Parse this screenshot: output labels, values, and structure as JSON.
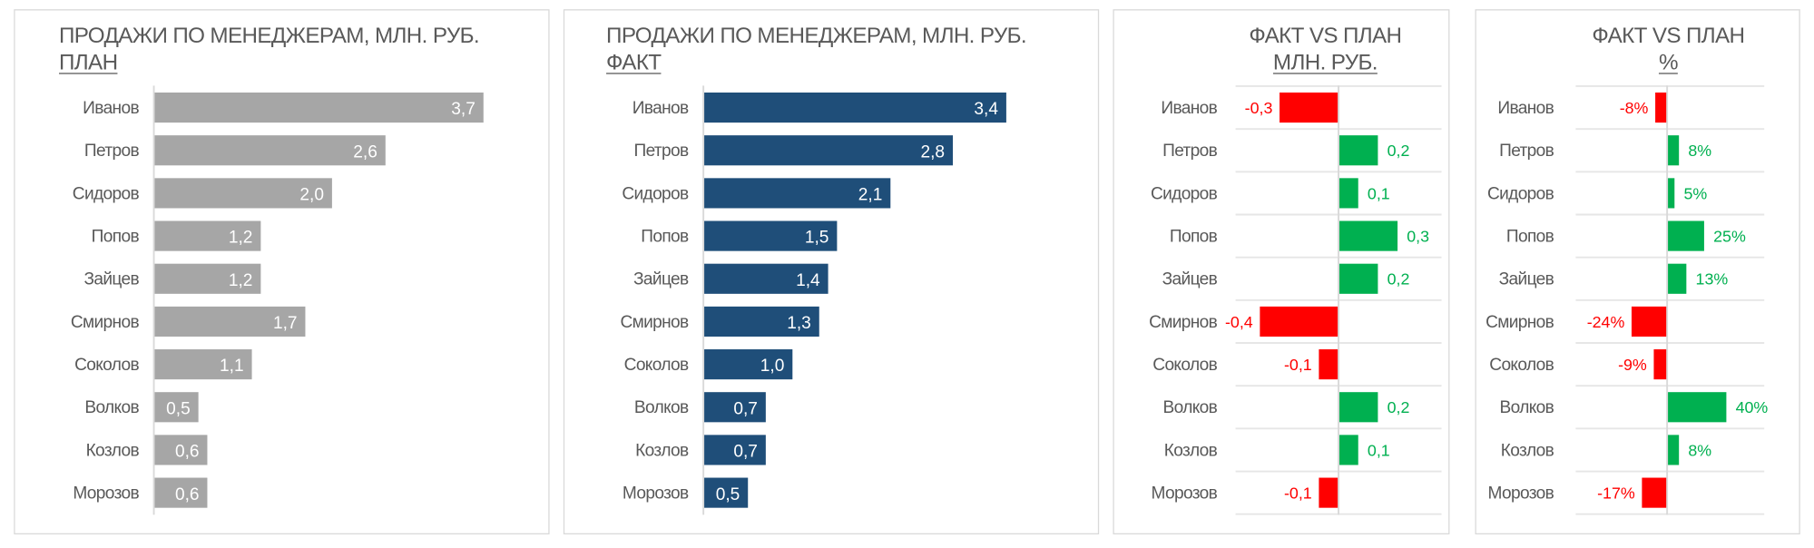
{
  "managers": [
    "Иванов",
    "Петров",
    "Сидоров",
    "Попов",
    "Зайцев",
    "Смирнов",
    "Соколов",
    "Волков",
    "Козлов",
    "Морозов"
  ],
  "chart_data": [
    {
      "type": "bar",
      "orientation": "horizontal",
      "title": "ПРОДАЖИ ПО МЕНЕДЖЕРАМ, МЛН. РУБ.",
      "subtitle": "ПЛАН",
      "categories": [
        "Иванов",
        "Петров",
        "Сидоров",
        "Попов",
        "Зайцев",
        "Смирнов",
        "Соколов",
        "Волков",
        "Козлов",
        "Морозов"
      ],
      "values": [
        3.7,
        2.6,
        2.0,
        1.2,
        1.2,
        1.7,
        1.1,
        0.5,
        0.6,
        0.6
      ],
      "labels": [
        "3,7",
        "2,6",
        "2,0",
        "1,2",
        "1,2",
        "1,7",
        "1,1",
        "0,5",
        "0,6",
        "0,6"
      ],
      "color": "#a6a6a6",
      "grid": false
    },
    {
      "type": "bar",
      "orientation": "horizontal",
      "title": "ПРОДАЖИ ПО МЕНЕДЖЕРАМ, МЛН. РУБ.",
      "subtitle": "ФАКТ",
      "categories": [
        "Иванов",
        "Петров",
        "Сидоров",
        "Попов",
        "Зайцев",
        "Смирнов",
        "Соколов",
        "Волков",
        "Козлов",
        "Морозов"
      ],
      "values": [
        3.4,
        2.8,
        2.1,
        1.5,
        1.4,
        1.3,
        1.0,
        0.7,
        0.7,
        0.5
      ],
      "labels": [
        "3,4",
        "2,8",
        "2,1",
        "1,5",
        "1,4",
        "1,3",
        "1,0",
        "0,7",
        "0,7",
        "0,5"
      ],
      "color": "#1f4e79",
      "grid": false
    },
    {
      "type": "bar",
      "orientation": "horizontal",
      "title": "ФАКТ VS ПЛАН",
      "subtitle": "МЛН. РУБ.",
      "categories": [
        "Иванов",
        "Петров",
        "Сидоров",
        "Попов",
        "Зайцев",
        "Смирнов",
        "Соколов",
        "Волков",
        "Козлов",
        "Морозов"
      ],
      "values": [
        -0.3,
        0.2,
        0.1,
        0.3,
        0.2,
        -0.4,
        -0.1,
        0.2,
        0.1,
        -0.1
      ],
      "labels": [
        "-0,3",
        "0,2",
        "0,1",
        "0,3",
        "0,2",
        "-0,4",
        "-0,1",
        "0,2",
        "0,1",
        "-0,1"
      ],
      "positive_color": "#00b050",
      "negative_color": "#ff0000",
      "grid": true
    },
    {
      "type": "bar",
      "orientation": "horizontal",
      "title": "ФАКТ VS ПЛАН",
      "subtitle": "%",
      "categories": [
        "Иванов",
        "Петров",
        "Сидоров",
        "Попов",
        "Зайцев",
        "Смирнов",
        "Соколов",
        "Волков",
        "Козлов",
        "Морозов"
      ],
      "values": [
        -8,
        8,
        5,
        25,
        13,
        -24,
        -9,
        40,
        8,
        -17
      ],
      "labels": [
        "-8%",
        "8%",
        "5%",
        "25%",
        "13%",
        "-24%",
        "-9%",
        "40%",
        "8%",
        "-17%"
      ],
      "positive_color": "#00b050",
      "negative_color": "#ff0000",
      "grid": true
    }
  ]
}
